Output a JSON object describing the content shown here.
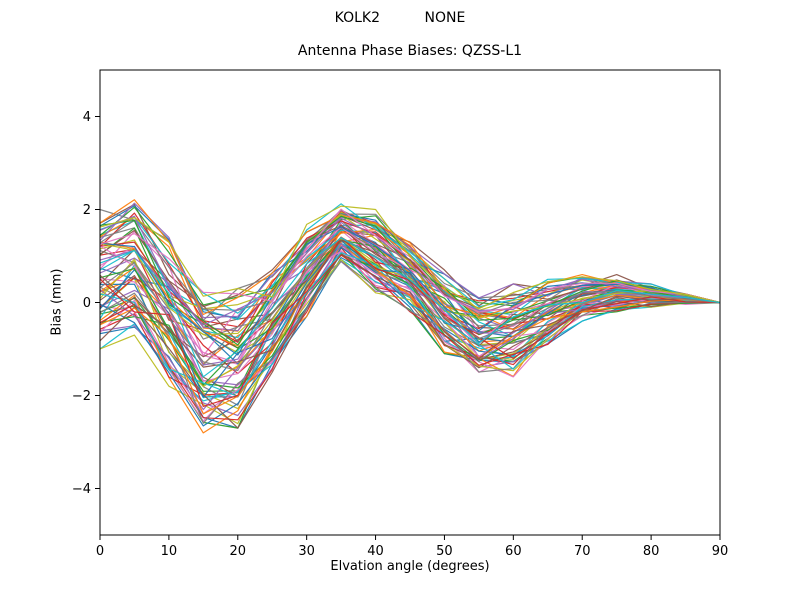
{
  "figure": {
    "suptitle": "KOLK2          NONE",
    "title": "Antenna Phase Biases: QZSS-L1",
    "xlabel": "Elvation angle (degrees)",
    "ylabel": "Bias (mm)"
  },
  "chart_data": {
    "type": "line",
    "title": "Antenna Phase Biases: QZSS-L1",
    "suptitle": "KOLK2          NONE",
    "xlabel": "Elvation angle (degrees)",
    "ylabel": "Bias (mm)",
    "xlim": [
      0,
      90
    ],
    "ylim": [
      -5,
      5
    ],
    "xticks": [
      0,
      10,
      20,
      30,
      40,
      50,
      60,
      70,
      80,
      90
    ],
    "yticks": [
      -4,
      -2,
      0,
      2,
      4
    ],
    "grid": false,
    "legend": "none",
    "x": [
      0,
      5,
      10,
      15,
      20,
      25,
      30,
      35,
      40,
      45,
      50,
      55,
      60,
      65,
      70,
      75,
      80,
      85,
      90
    ],
    "ensemble": {
      "n_lines": 70,
      "mean": [
        0.5,
        0.8,
        -0.2,
        -1.3,
        -1.2,
        -0.4,
        0.7,
        1.5,
        1.1,
        0.55,
        -0.2,
        -0.75,
        -0.6,
        -0.2,
        0.1,
        0.2,
        0.15,
        0.08,
        0.0
      ],
      "halfwidth": [
        1.5,
        1.5,
        1.6,
        1.6,
        1.5,
        1.1,
        1.0,
        0.7,
        0.9,
        0.75,
        0.9,
        0.85,
        1.0,
        0.7,
        0.5,
        0.4,
        0.25,
        0.12,
        0.0
      ]
    },
    "colors": [
      "#1f77b4",
      "#ff7f0e",
      "#2ca02c",
      "#d62728",
      "#9467bd",
      "#8c564b",
      "#e377c2",
      "#7f7f7f",
      "#bcbd22",
      "#17becf"
    ]
  }
}
